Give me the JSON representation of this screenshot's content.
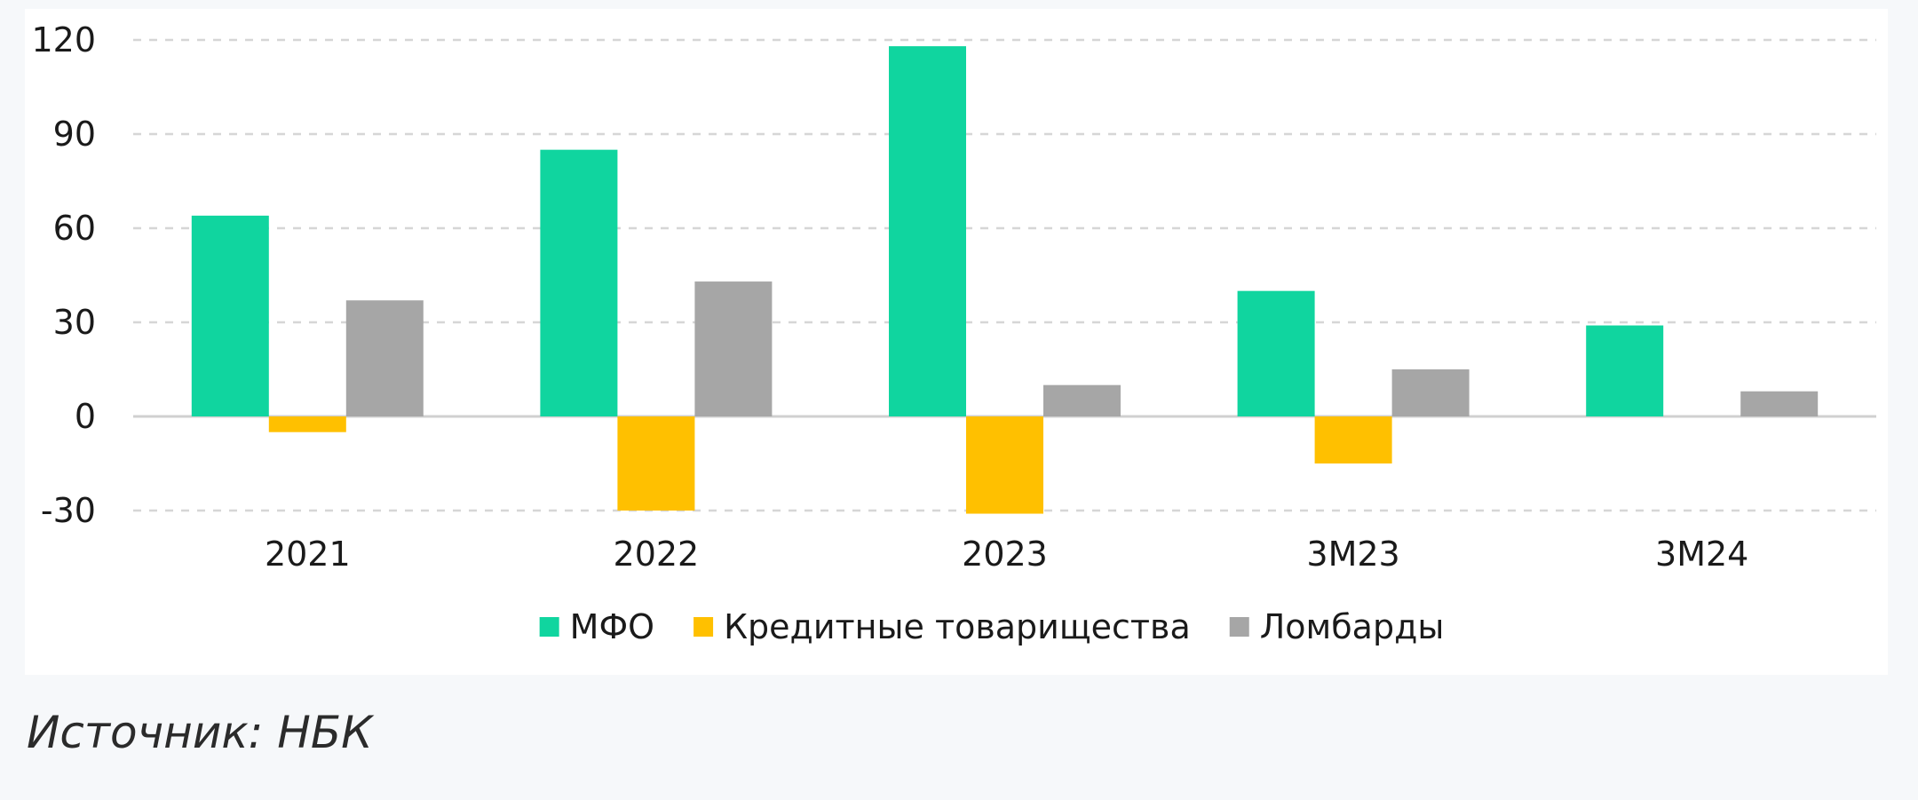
{
  "chart_data": {
    "type": "bar",
    "categories": [
      "2021",
      "2022",
      "2023",
      "3М23",
      "3М24"
    ],
    "series": [
      {
        "name": "МФО",
        "color": "#10d59f",
        "values": [
          64,
          85,
          118,
          40,
          29
        ]
      },
      {
        "name": "Кредитные товарищества",
        "color": "#ffc000",
        "values": [
          -5,
          -30,
          -31,
          -15,
          null
        ]
      },
      {
        "name": "Ломбарды",
        "color": "#a6a6a6",
        "values": [
          37,
          43,
          10,
          15,
          8
        ]
      }
    ],
    "y_ticks": [
      "120",
      "90",
      "60",
      "30",
      "0",
      "-30"
    ],
    "ylim": [
      -30,
      120
    ],
    "grid": true,
    "legend_position": "bottom"
  },
  "source": "Источник: НБК"
}
